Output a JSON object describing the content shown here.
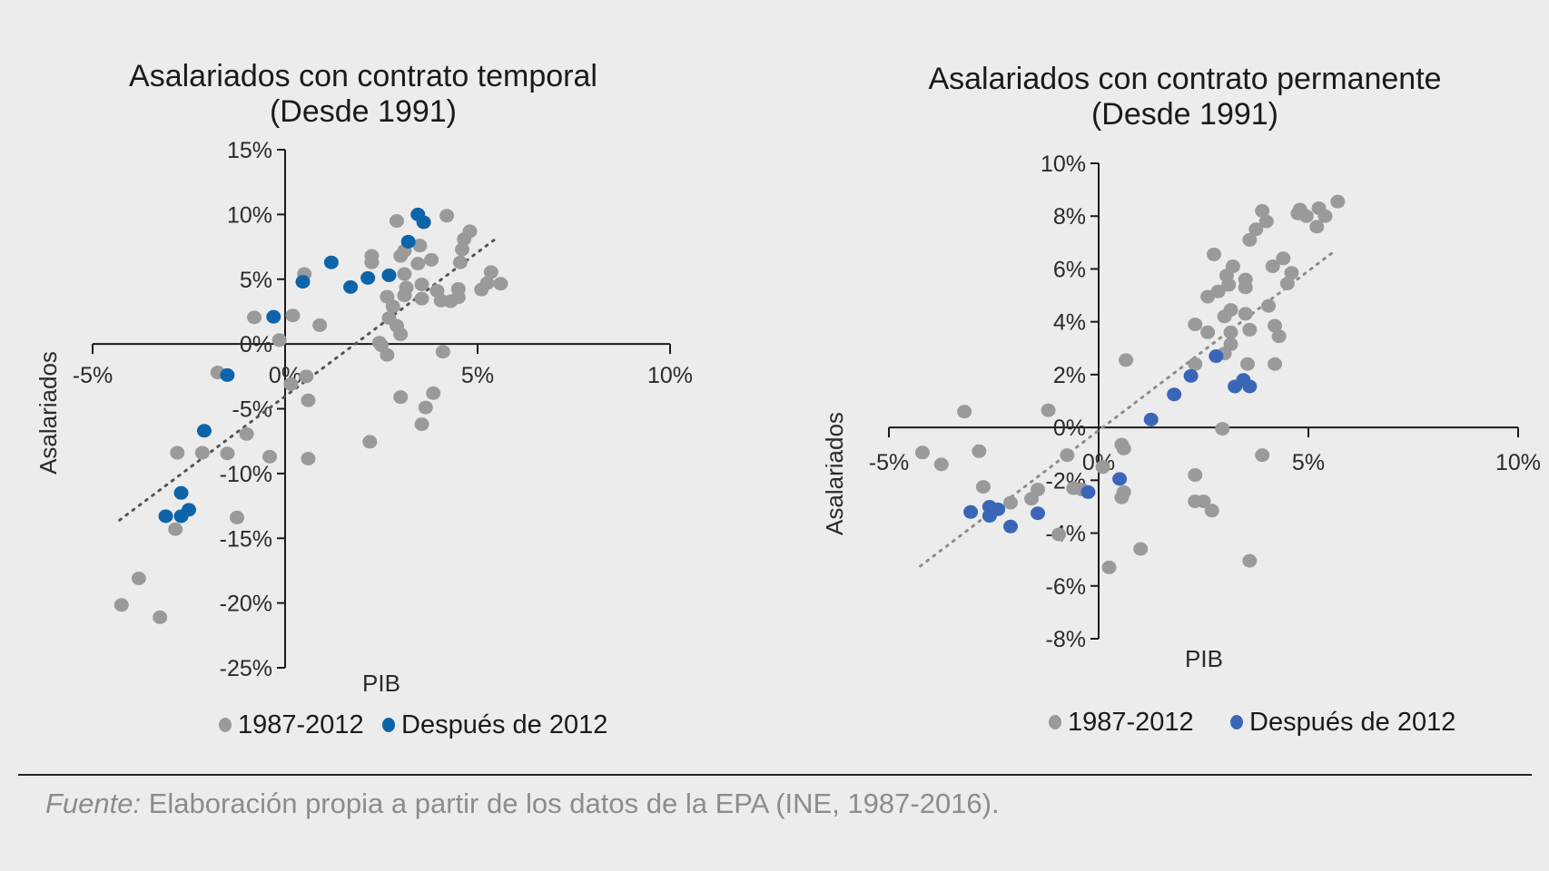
{
  "chart_data": [
    {
      "type": "scatter",
      "title": [
        "Asalariados con contrato temporal",
        "(Desde 1991)"
      ],
      "xlabel": "PIB",
      "ylabel": "Asalariados",
      "xlim": [
        -5,
        10
      ],
      "ylim": [
        -25,
        15
      ],
      "xticks": [
        -5,
        0,
        5,
        10
      ],
      "xtick_labels": [
        "-5%",
        "0%",
        "5%",
        "10%"
      ],
      "yticks": [
        15,
        10,
        5,
        0,
        -5,
        -10,
        -15,
        -20,
        -25
      ],
      "ytick_labels": [
        "15%",
        "10%",
        "5%",
        "0%",
        "-5%",
        "-10%",
        "-15%",
        "-20%",
        "-25%"
      ],
      "grid": false,
      "legend_position": "bottom",
      "trendline": {
        "style": "dotted",
        "x": [
          -4.3,
          5.55
        ],
        "y": [
          -13.6,
          8.3
        ]
      },
      "series": [
        {
          "name": "1987-2012",
          "color": "#9a9a9a",
          "points": [
            [
              2.9,
              9.5
            ],
            [
              4.2,
              9.9
            ],
            [
              4.8,
              8.7
            ],
            [
              4.65,
              8.1
            ],
            [
              4.6,
              7.3
            ],
            [
              4.55,
              6.3
            ],
            [
              3.8,
              6.5
            ],
            [
              3.5,
              7.6
            ],
            [
              3.45,
              6.2
            ],
            [
              3.1,
              7.2
            ],
            [
              3.0,
              6.8
            ],
            [
              2.25,
              6.8
            ],
            [
              2.25,
              6.3
            ],
            [
              0.5,
              5.4
            ],
            [
              3.1,
              5.4
            ],
            [
              3.15,
              4.35
            ],
            [
              3.1,
              3.75
            ],
            [
              3.55,
              4.6
            ],
            [
              3.55,
              3.5
            ],
            [
              3.95,
              4.1
            ],
            [
              4.05,
              3.35
            ],
            [
              4.3,
              3.3
            ],
            [
              4.5,
              4.25
            ],
            [
              4.5,
              3.6
            ],
            [
              5.25,
              4.7
            ],
            [
              5.35,
              5.55
            ],
            [
              5.6,
              4.65
            ],
            [
              5.1,
              4.2
            ],
            [
              2.65,
              3.65
            ],
            [
              2.8,
              2.9
            ],
            [
              2.7,
              2.0
            ],
            [
              2.9,
              1.4
            ],
            [
              3.0,
              0.75
            ],
            [
              2.5,
              -0.1
            ],
            [
              2.65,
              -0.85
            ],
            [
              2.45,
              0.1
            ],
            [
              4.1,
              -0.6
            ],
            [
              -0.8,
              2.05
            ],
            [
              0.2,
              2.2
            ],
            [
              0.9,
              1.45
            ],
            [
              -0.15,
              0.3
            ],
            [
              -1.75,
              -2.2
            ],
            [
              0.55,
              -2.5
            ],
            [
              0.15,
              -3.1
            ],
            [
              0.6,
              -4.35
            ],
            [
              3.0,
              -4.1
            ],
            [
              3.85,
              -3.8
            ],
            [
              3.65,
              -4.9
            ],
            [
              3.55,
              -6.2
            ],
            [
              2.2,
              -7.55
            ],
            [
              -1.0,
              -6.95
            ],
            [
              -1.5,
              -8.45
            ],
            [
              -2.15,
              -8.4
            ],
            [
              -2.8,
              -8.4
            ],
            [
              -0.4,
              -8.7
            ],
            [
              0.6,
              -8.85
            ],
            [
              -1.25,
              -13.4
            ],
            [
              -2.85,
              -14.3
            ],
            [
              -3.8,
              -18.1
            ],
            [
              -4.25,
              -20.15
            ],
            [
              -3.25,
              -21.1
            ]
          ]
        },
        {
          "name": "Después de 2012",
          "color": "#0e64a8",
          "points": [
            [
              3.45,
              10.0
            ],
            [
              3.6,
              9.4
            ],
            [
              3.2,
              7.9
            ],
            [
              1.2,
              6.3
            ],
            [
              0.46,
              4.8
            ],
            [
              1.7,
              4.4
            ],
            [
              2.15,
              5.1
            ],
            [
              2.7,
              5.3
            ],
            [
              -0.3,
              2.1
            ],
            [
              -1.5,
              -2.4
            ],
            [
              -2.1,
              -6.7
            ],
            [
              -2.7,
              -11.5
            ],
            [
              -2.5,
              -12.8
            ],
            [
              -2.7,
              -13.3
            ],
            [
              -3.1,
              -13.3
            ]
          ]
        }
      ]
    },
    {
      "type": "scatter",
      "title": [
        "Asalariados con contrato permanente",
        "(Desde 1991)"
      ],
      "xlabel": "PIB",
      "ylabel": "Asalariados",
      "xlim": [
        -5,
        10
      ],
      "ylim": [
        -8,
        10
      ],
      "xticks": [
        -5,
        0,
        5,
        10
      ],
      "xtick_labels": [
        "-5%",
        "0%",
        "5%",
        "10%"
      ],
      "yticks": [
        10,
        8,
        6,
        4,
        2,
        0,
        -2,
        -4,
        -6,
        -8
      ],
      "ytick_labels": [
        "10%",
        "8%",
        "6%",
        "4%",
        "2%",
        "0%",
        "-2%",
        "-4%",
        "-6%",
        "-8%"
      ],
      "grid": false,
      "legend_position": "bottom",
      "trendline": {
        "style": "dotted",
        "x": [
          -4.25,
          5.6
        ],
        "y": [
          -5.25,
          6.65
        ]
      },
      "series": [
        {
          "name": "1987-2012",
          "color": "#9a9a9a",
          "points": [
            [
              3.9,
              8.2
            ],
            [
              4.0,
              7.8
            ],
            [
              3.75,
              7.5
            ],
            [
              3.6,
              7.1
            ],
            [
              4.8,
              8.25
            ],
            [
              4.95,
              8.0
            ],
            [
              4.75,
              8.1
            ],
            [
              5.25,
              8.3
            ],
            [
              5.4,
              8.0
            ],
            [
              5.2,
              7.6
            ],
            [
              5.7,
              8.55
            ],
            [
              2.75,
              6.55
            ],
            [
              4.4,
              6.4
            ],
            [
              4.15,
              6.1
            ],
            [
              4.6,
              5.85
            ],
            [
              4.5,
              5.45
            ],
            [
              3.2,
              6.1
            ],
            [
              3.05,
              5.75
            ],
            [
              3.1,
              5.4
            ],
            [
              3.5,
              5.6
            ],
            [
              3.5,
              5.3
            ],
            [
              2.85,
              5.15
            ],
            [
              2.6,
              4.95
            ],
            [
              4.05,
              4.6
            ],
            [
              3.15,
              4.45
            ],
            [
              3.0,
              4.2
            ],
            [
              3.5,
              4.3
            ],
            [
              2.3,
              3.9
            ],
            [
              2.6,
              3.6
            ],
            [
              3.15,
              3.6
            ],
            [
              3.6,
              3.7
            ],
            [
              4.2,
              3.85
            ],
            [
              4.3,
              3.45
            ],
            [
              3.15,
              3.15
            ],
            [
              3.0,
              2.8
            ],
            [
              2.3,
              2.4
            ],
            [
              3.55,
              2.4
            ],
            [
              4.2,
              2.4
            ],
            [
              0.65,
              2.55
            ],
            [
              2.95,
              -0.05
            ],
            [
              3.9,
              -1.05
            ],
            [
              -3.2,
              0.6
            ],
            [
              -1.2,
              0.65
            ],
            [
              -4.2,
              -0.95
            ],
            [
              -3.75,
              -1.4
            ],
            [
              -2.85,
              -0.9
            ],
            [
              -0.75,
              -1.05
            ],
            [
              0.1,
              -1.5
            ],
            [
              0.55,
              -0.65
            ],
            [
              0.6,
              -0.8
            ],
            [
              2.3,
              -1.8
            ],
            [
              2.3,
              -2.8
            ],
            [
              2.5,
              -2.8
            ],
            [
              2.7,
              -3.15
            ],
            [
              0.6,
              -2.45
            ],
            [
              0.55,
              -2.65
            ],
            [
              -0.4,
              -2.35
            ],
            [
              -0.6,
              -2.3
            ],
            [
              -1.45,
              -2.35
            ],
            [
              -1.6,
              -2.7
            ],
            [
              -2.1,
              -2.85
            ],
            [
              -2.75,
              -2.25
            ],
            [
              -0.95,
              -4.05
            ],
            [
              1.0,
              -4.6
            ],
            [
              0.25,
              -5.3
            ],
            [
              3.6,
              -5.05
            ]
          ]
        },
        {
          "name": "Después de 2012",
          "color": "#3b66b8",
          "points": [
            [
              1.25,
              0.3
            ],
            [
              1.8,
              1.25
            ],
            [
              2.2,
              1.95
            ],
            [
              2.8,
              2.7
            ],
            [
              3.25,
              1.55
            ],
            [
              3.45,
              1.8
            ],
            [
              3.6,
              1.55
            ],
            [
              0.5,
              -1.95
            ],
            [
              -0.25,
              -2.45
            ],
            [
              -1.45,
              -3.25
            ],
            [
              -2.1,
              -3.75
            ],
            [
              -2.4,
              -3.1
            ],
            [
              -2.6,
              -3.35
            ],
            [
              -2.6,
              -3.0
            ],
            [
              -3.05,
              -3.2
            ]
          ]
        }
      ]
    }
  ],
  "footer": {
    "source_label": "Fuente:",
    "source_text": " Elaboración propia a partir de los datos de la EPA (INE, 1987-2016)."
  }
}
